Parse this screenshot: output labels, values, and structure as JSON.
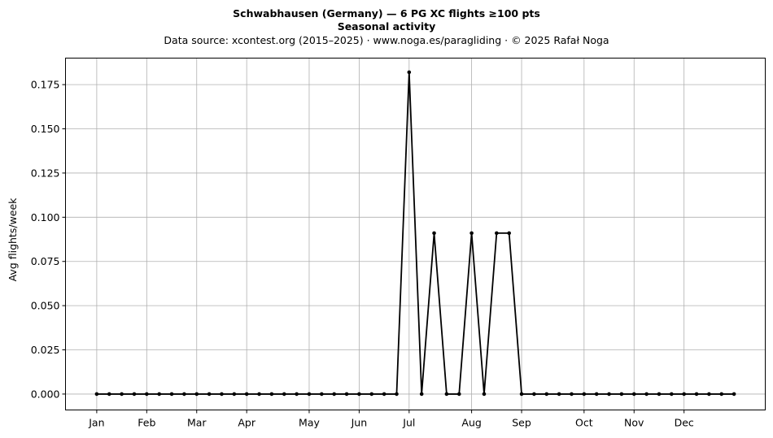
{
  "chart_data": {
    "type": "line",
    "title": "Schwabhausen (Germany)  —  6 PG XC flights ≥100 pts",
    "subtitle": "Seasonal activity",
    "source_note": "Data source: xcontest.org (2015–2025)  ·  www.noga.es/paragliding  ·  © 2025 Rafał Noga",
    "xlabel": "",
    "ylabel": "Avg flights/week",
    "ylim": [
      -0.009,
      0.19
    ],
    "xlim": [
      -2.5,
      53.5
    ],
    "grid": true,
    "x_ticks": [
      {
        "label": "Jan",
        "week": 0
      },
      {
        "label": "Feb",
        "week": 4
      },
      {
        "label": "Mar",
        "week": 8
      },
      {
        "label": "Apr",
        "week": 12
      },
      {
        "label": "May",
        "week": 17
      },
      {
        "label": "Jun",
        "week": 21
      },
      {
        "label": "Jul",
        "week": 25
      },
      {
        "label": "Aug",
        "week": 30
      },
      {
        "label": "Sep",
        "week": 34
      },
      {
        "label": "Oct",
        "week": 39
      },
      {
        "label": "Nov",
        "week": 43
      },
      {
        "label": "Dec",
        "week": 47
      }
    ],
    "y_ticks": [
      "0.000",
      "0.025",
      "0.050",
      "0.075",
      "0.100",
      "0.125",
      "0.150",
      "0.175"
    ],
    "y_tick_values": [
      0,
      0.025,
      0.05,
      0.075,
      0.1,
      0.125,
      0.15,
      0.175
    ],
    "series": [
      {
        "color": "#000000",
        "values": [
          0,
          0,
          0,
          0,
          0,
          0,
          0,
          0,
          0,
          0,
          0,
          0,
          0,
          0,
          0,
          0,
          0,
          0,
          0,
          0,
          0,
          0,
          0,
          0,
          0,
          0.182,
          0,
          0.091,
          0,
          0,
          0.091,
          0,
          0.091,
          0.091,
          0,
          0,
          0,
          0,
          0,
          0,
          0,
          0,
          0,
          0,
          0,
          0,
          0,
          0,
          0,
          0,
          0,
          0
        ]
      }
    ]
  }
}
